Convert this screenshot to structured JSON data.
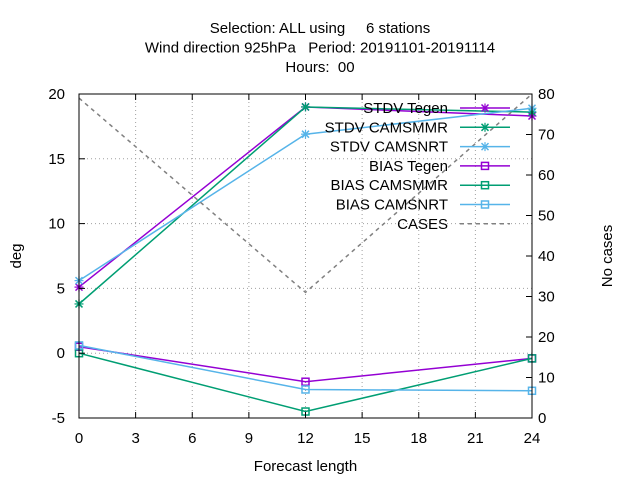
{
  "chart_data": {
    "type": "line",
    "title_lines": [
      "Selection: ALL using     6 stations",
      "Wind direction 925hPa   Period: 20191101-20191114",
      "Hours:  00"
    ],
    "xlabel": "Forecast length",
    "ylabel": "deg",
    "y2label": "No cases",
    "xlim": [
      0,
      24
    ],
    "ylim": [
      -5,
      20
    ],
    "y2lim": [
      0,
      80
    ],
    "xticks": [
      0,
      3,
      6,
      9,
      12,
      15,
      18,
      21,
      24
    ],
    "yticks": [
      -5,
      0,
      5,
      10,
      15,
      20
    ],
    "y2ticks": [
      0,
      10,
      20,
      30,
      40,
      50,
      60,
      70,
      80
    ],
    "grid": true,
    "legend_position": "top-right",
    "x": [
      0,
      12,
      24
    ],
    "series": [
      {
        "name": "STDV Tegen",
        "values": [
          5.1,
          19.0,
          18.3
        ],
        "color": "#9400d3",
        "marker": "x",
        "axis": "y"
      },
      {
        "name": "STDV CAMSMMR",
        "values": [
          3.8,
          19.0,
          18.6
        ],
        "color": "#009e73",
        "marker": "x",
        "axis": "y"
      },
      {
        "name": "STDV CAMSNRT",
        "values": [
          5.6,
          16.9,
          18.9
        ],
        "color": "#56b4e9",
        "marker": "x",
        "axis": "y"
      },
      {
        "name": "BIAS Tegen",
        "values": [
          0.5,
          -2.2,
          -0.4
        ],
        "color": "#9400d3",
        "marker": "square",
        "axis": "y"
      },
      {
        "name": "BIAS CAMSMMR",
        "values": [
          0.0,
          -4.5,
          -0.4
        ],
        "color": "#009e73",
        "marker": "square",
        "axis": "y"
      },
      {
        "name": "BIAS CAMSNRT",
        "values": [
          0.6,
          -2.8,
          -2.9
        ],
        "color": "#56b4e9",
        "marker": "square",
        "axis": "y"
      },
      {
        "name": "CASES",
        "values": [
          79,
          31,
          80
        ],
        "color": "#808080",
        "marker": "none",
        "axis": "y2",
        "dashed": true
      }
    ]
  }
}
